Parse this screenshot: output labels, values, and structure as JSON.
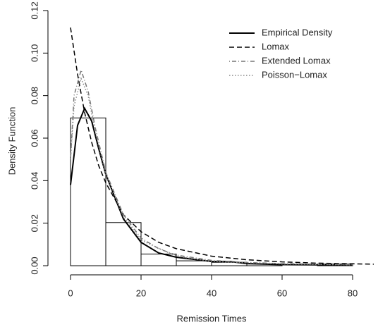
{
  "chart_data": {
    "type": "histogram",
    "xlabel": "Remission Times",
    "ylabel": "Density Function",
    "bins": [
      0,
      10,
      20,
      30,
      40,
      50,
      60,
      70,
      80
    ],
    "values": [
      0.0695,
      0.0203,
      0.0055,
      0.0023,
      0.0016,
      0.0008,
      0,
      0.0008
    ],
    "bar_color": "#ffffff",
    "bar_edge": "#000000",
    "xlim": [
      -6.4,
      86.2
    ],
    "ylim": [
      -0.0045,
      0.1245
    ],
    "xticks": [
      0,
      20,
      40,
      60,
      80
    ],
    "yticks": [
      {
        "value": 0,
        "label": "0.00"
      },
      {
        "value": 0.02,
        "label": "0.02"
      },
      {
        "value": 0.04,
        "label": "0.04"
      },
      {
        "value": 0.06,
        "label": "0.06"
      },
      {
        "value": 0.08,
        "label": "0.08"
      },
      {
        "value": 0.1,
        "label": "0.10"
      },
      {
        "value": 0.12,
        "label": "0.12"
      }
    ],
    "legend": "topright",
    "series": [
      {
        "name": "Empirical Density",
        "color": "#000000",
        "dash": "solid",
        "width": 2,
        "x": [
          0,
          2,
          4,
          6,
          8,
          10,
          15,
          20,
          25,
          30,
          40,
          45,
          50,
          60,
          80
        ],
        "values": [
          0.038,
          0.066,
          0.074,
          0.068,
          0.055,
          0.043,
          0.022,
          0.011,
          0.006,
          0.004,
          0.002,
          0.002,
          0.001,
          0.0005,
          0.0003
        ]
      },
      {
        "name": "Lomax",
        "color": "#000000",
        "dash": "dashed",
        "width": 1.5,
        "x": [
          0,
          2,
          4,
          6,
          8,
          10,
          15,
          20,
          25,
          30,
          40,
          50,
          60,
          70,
          80,
          86
        ],
        "values": [
          0.112,
          0.09,
          0.072,
          0.058,
          0.047,
          0.039,
          0.024,
          0.016,
          0.011,
          0.008,
          0.0045,
          0.0028,
          0.0018,
          0.0012,
          0.0009,
          0.0007
        ]
      },
      {
        "name": "Extended Lomax",
        "color": "#777777",
        "dash": "dotdash",
        "width": 1.5,
        "x": [
          0,
          1,
          3,
          5,
          7,
          10,
          15,
          20,
          25,
          30,
          40,
          50,
          60,
          80
        ],
        "values": [
          0.05,
          0.08,
          0.092,
          0.082,
          0.065,
          0.044,
          0.024,
          0.013,
          0.008,
          0.005,
          0.0025,
          0.0015,
          0.001,
          0.0005
        ]
      },
      {
        "name": "Poisson−Lomax",
        "color": "#888888",
        "dash": "dotted",
        "width": 1.5,
        "x": [
          0,
          1,
          3,
          5,
          7,
          10,
          15,
          20,
          30,
          40,
          60,
          80
        ],
        "values": [
          0.05,
          0.075,
          0.088,
          0.08,
          0.063,
          0.043,
          0.023,
          0.012,
          0.0045,
          0.002,
          0.0008,
          0.0004
        ]
      }
    ]
  }
}
